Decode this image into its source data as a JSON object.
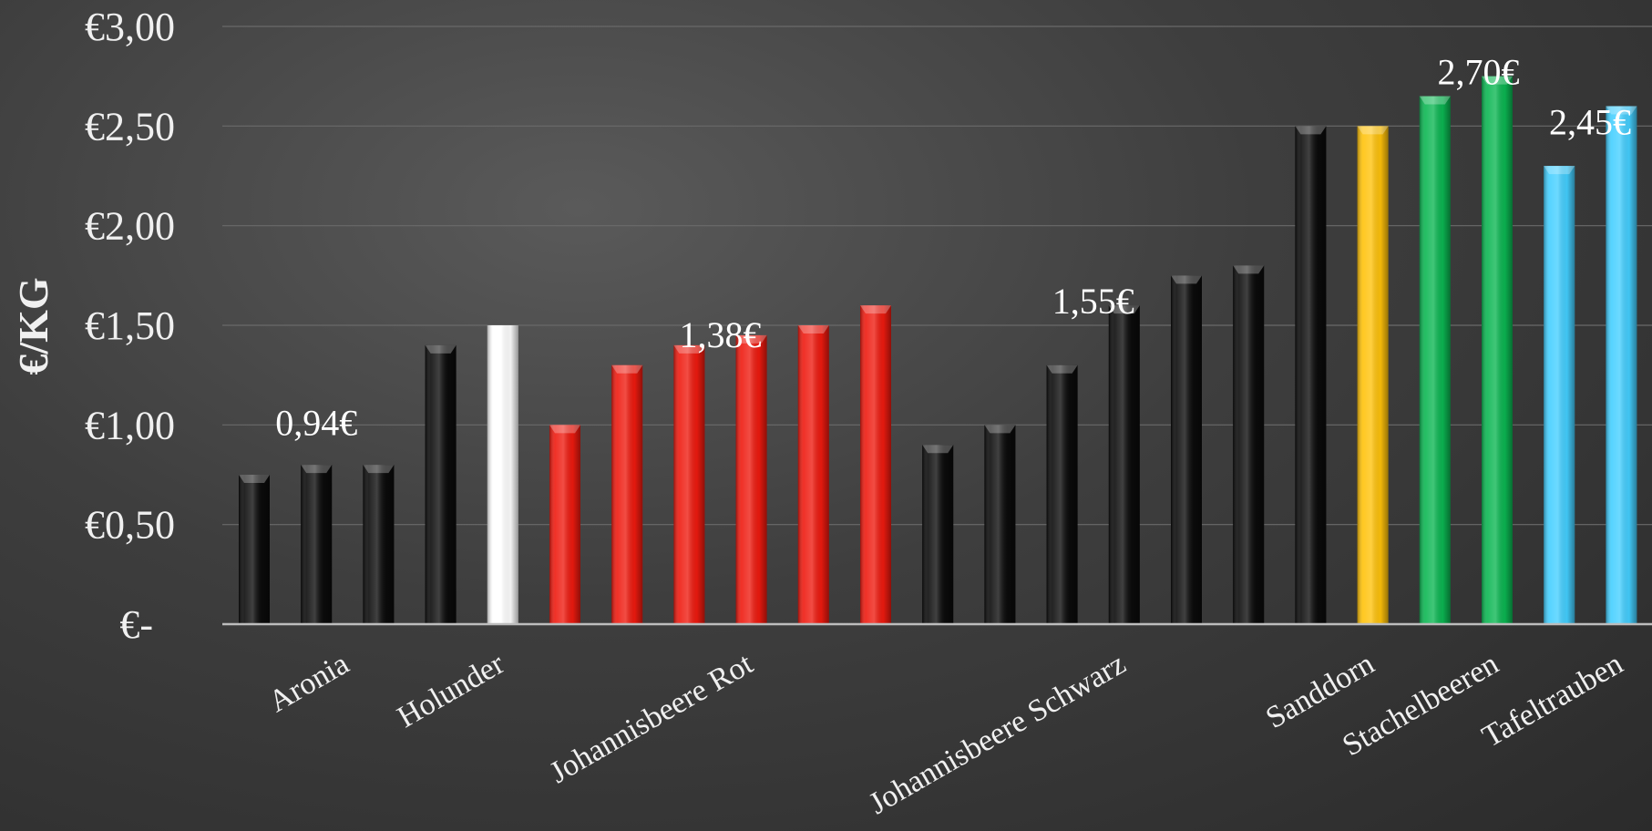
{
  "chart_data": {
    "type": "bar",
    "title": "",
    "xlabel": "",
    "ylabel": "€/KG",
    "ylim": [
      0,
      3.0
    ],
    "grid": true,
    "y_ticks": [
      {
        "value": 0,
        "label": "€-"
      },
      {
        "value": 0.5,
        "label": "€0,50"
      },
      {
        "value": 1.0,
        "label": "€1,00"
      },
      {
        "value": 1.5,
        "label": "€1,50"
      },
      {
        "value": 2.0,
        "label": "€2,00"
      },
      {
        "value": 2.5,
        "label": "€2,50"
      },
      {
        "value": 3.0,
        "label": "€3,00"
      }
    ],
    "colors": {
      "black": "#0b0b0b",
      "white": "#ffffff",
      "red": "#ee1a0f",
      "yellow": "#ffc20a",
      "green": "#0bb652",
      "cyan": "#44cfff"
    },
    "bars": [
      {
        "value": 0.75,
        "color": "black"
      },
      {
        "value": 0.8,
        "color": "black"
      },
      {
        "value": 0.8,
        "color": "black"
      },
      {
        "value": 1.4,
        "color": "black"
      },
      {
        "value": 1.5,
        "color": "white"
      },
      {
        "value": 1.0,
        "color": "red"
      },
      {
        "value": 1.3,
        "color": "red"
      },
      {
        "value": 1.4,
        "color": "red"
      },
      {
        "value": 1.45,
        "color": "red"
      },
      {
        "value": 1.5,
        "color": "red"
      },
      {
        "value": 1.6,
        "color": "red"
      },
      {
        "value": 0.9,
        "color": "black"
      },
      {
        "value": 1.0,
        "color": "black"
      },
      {
        "value": 1.3,
        "color": "black"
      },
      {
        "value": 1.6,
        "color": "black"
      },
      {
        "value": 1.75,
        "color": "black"
      },
      {
        "value": 1.8,
        "color": "black"
      },
      {
        "value": 2.5,
        "color": "black"
      },
      {
        "value": 2.5,
        "color": "yellow"
      },
      {
        "value": 2.65,
        "color": "green"
      },
      {
        "value": 2.75,
        "color": "green"
      },
      {
        "value": 2.3,
        "color": "cyan"
      },
      {
        "value": 2.6,
        "color": "cyan"
      }
    ],
    "categories": [
      {
        "label": "Aronia",
        "bar_index": 1
      },
      {
        "label": "Holunder",
        "bar_index": 3.5
      },
      {
        "label": "Johannisbeere Rot",
        "bar_index": 7.5
      },
      {
        "label": "Johannisbeere Schwarz",
        "bar_index": 13.5
      },
      {
        "label": "Sanddorn",
        "bar_index": 17.5
      },
      {
        "label": "Stachelbeeren",
        "bar_index": 19.5
      },
      {
        "label": "Tafeltrauben",
        "bar_index": 21.5
      }
    ],
    "annotations": [
      {
        "text": "0,94€",
        "bar_index": 1,
        "value": 0.94
      },
      {
        "text": "1,38€",
        "bar_index": 7.5,
        "value": 1.38
      },
      {
        "text": "1,55€",
        "bar_index": 13.5,
        "value": 1.55
      },
      {
        "text": "2,70€",
        "bar_index": 19.7,
        "value": 2.7
      },
      {
        "text": "2,45€",
        "bar_index": 21.5,
        "value": 2.45
      }
    ]
  }
}
